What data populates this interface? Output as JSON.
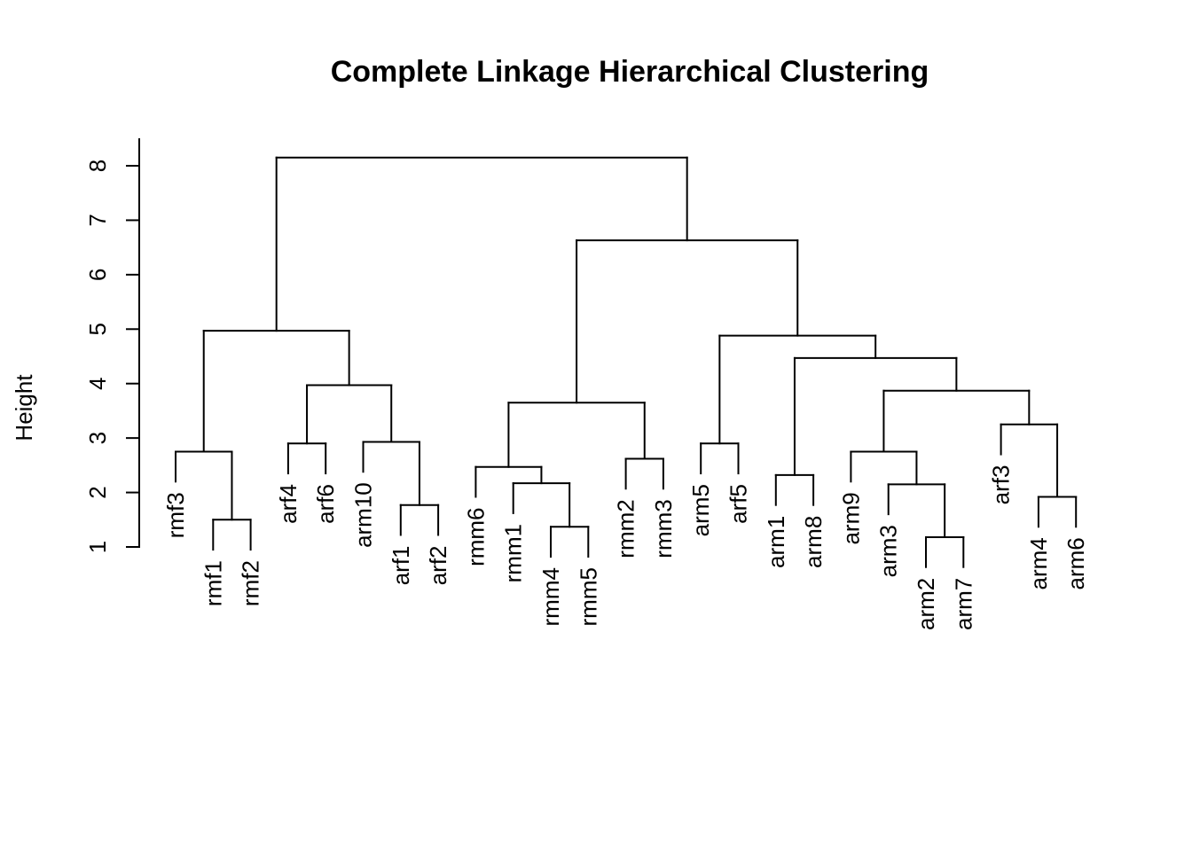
{
  "chart_data": {
    "type": "dendrogram",
    "title": "Complete Linkage Hierarchical Clustering",
    "ylabel": "Height",
    "ylim": [
      1,
      8
    ],
    "yticks": [
      1,
      2,
      3,
      4,
      5,
      6,
      7,
      8
    ],
    "leaves": [
      "rmf3",
      "rmf1",
      "rmf2",
      "arf4",
      "arf6",
      "arm10",
      "arf1",
      "arf2",
      "rmm6",
      "rmm1",
      "rmm4",
      "rmm5",
      "rmm2",
      "rmm3",
      "arm5",
      "arf5",
      "arm1",
      "arm8",
      "arm9",
      "arm3",
      "arm2",
      "arm7",
      "arf3",
      "arm4",
      "arm6"
    ],
    "merges": [
      {
        "a": "L:rmf1",
        "b": "L:rmf2",
        "h": 1.5
      },
      {
        "a": "L:rmf3",
        "b": "M0",
        "h": 2.75
      },
      {
        "a": "L:arf4",
        "b": "L:arf6",
        "h": 2.9
      },
      {
        "a": "L:arf1",
        "b": "L:arf2",
        "h": 1.77
      },
      {
        "a": "L:arm10",
        "b": "M3",
        "h": 2.93
      },
      {
        "a": "M2",
        "b": "M4",
        "h": 3.97
      },
      {
        "a": "M1",
        "b": "M5",
        "h": 4.97
      },
      {
        "a": "L:rmm4",
        "b": "L:rmm5",
        "h": 1.37
      },
      {
        "a": "L:rmm1",
        "b": "M7",
        "h": 2.17
      },
      {
        "a": "L:rmm6",
        "b": "M8",
        "h": 2.47
      },
      {
        "a": "L:rmm2",
        "b": "L:rmm3",
        "h": 2.62
      },
      {
        "a": "M9",
        "b": "M10",
        "h": 3.65
      },
      {
        "a": "L:arm5",
        "b": "L:arf5",
        "h": 2.9
      },
      {
        "a": "L:arm1",
        "b": "L:arm8",
        "h": 2.32
      },
      {
        "a": "L:arm2",
        "b": "L:arm7",
        "h": 1.18
      },
      {
        "a": "L:arm3",
        "b": "M14",
        "h": 2.15
      },
      {
        "a": "L:arm9",
        "b": "M15",
        "h": 2.75
      },
      {
        "a": "L:arm4",
        "b": "L:arm6",
        "h": 1.92
      },
      {
        "a": "L:arf3",
        "b": "M17",
        "h": 3.25
      },
      {
        "a": "M16",
        "b": "M18",
        "h": 3.87
      },
      {
        "a": "M13",
        "b": "M19",
        "h": 4.47
      },
      {
        "a": "M12",
        "b": "M20",
        "h": 4.88
      },
      {
        "a": "M11",
        "b": "M21",
        "h": 6.63
      },
      {
        "a": "M6",
        "b": "M22",
        "h": 8.15
      }
    ]
  }
}
